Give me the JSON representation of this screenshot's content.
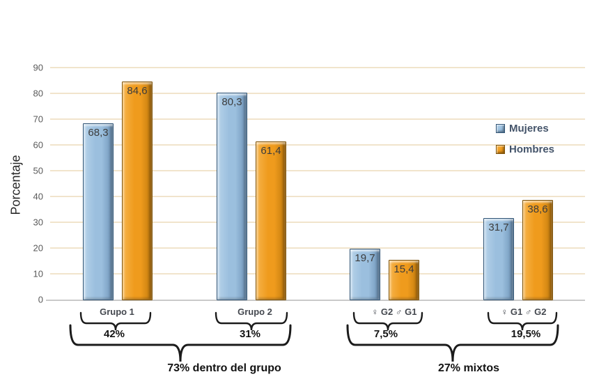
{
  "chart_data": {
    "type": "bar",
    "title": "",
    "ylabel": "Porcentaje",
    "ylim": [
      0,
      90
    ],
    "yticks": [
      0,
      10,
      20,
      30,
      40,
      50,
      60,
      70,
      80,
      90
    ],
    "grid": true,
    "legend_position": "right",
    "categories": [
      "Grupo 1",
      "Grupo 2",
      "♀ G2 ♂ G1",
      "♀ G1 ♂ G2"
    ],
    "series": [
      {
        "name": "Mujeres",
        "values": [
          68.3,
          80.3,
          19.7,
          31.7
        ],
        "labels": [
          "68,3",
          "80,3",
          "19,7",
          "31,7"
        ],
        "color": "#9BBFDE",
        "color_light": "#B6D2E9",
        "color_dark": "#6E94B8",
        "border": "#2F5375"
      },
      {
        "name": "Hombres",
        "values": [
          84.6,
          61.4,
          15.4,
          38.6
        ],
        "labels": [
          "84,6",
          "61,4",
          "15,4",
          "38,6"
        ],
        "color": "#EF9B1D",
        "color_light": "#F6B34A",
        "color_dark": "#C07A0D",
        "border": "#7E5207"
      }
    ],
    "annotations": {
      "group_braces": [
        {
          "category": "Grupo 1",
          "label": "42%"
        },
        {
          "category": "Grupo 2",
          "label": "31%"
        },
        {
          "category": "♀ G2 ♂ G1",
          "label": "7,5%"
        },
        {
          "category": "♀ G1 ♂ G2",
          "label": "19,5%"
        }
      ],
      "super_braces": [
        {
          "label": "73% dentro del grupo",
          "spans": [
            "Grupo 1",
            "Grupo 2"
          ]
        },
        {
          "label": "27% mixtos",
          "spans": [
            "♀ G2 ♂ G1",
            "♀ G1 ♂ G2"
          ]
        }
      ]
    }
  },
  "colors": {
    "background": "#FFFFFF",
    "grid": "#F1E4CC",
    "axis": "#C9C9C9",
    "value_text": "#3C3C3C",
    "tick_text": "#595959",
    "category_text": "#44484F",
    "legend_text": "#44546A",
    "brace": "#1B1B1B"
  }
}
